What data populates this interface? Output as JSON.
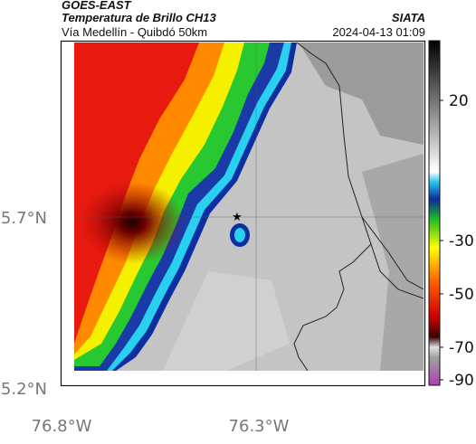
{
  "header": {
    "satellite": "GOES-EAST",
    "product": "Temperatura de Brillo CH13",
    "route": "Vía Medellín - Quibdó 50km",
    "agency": "SIATA",
    "datetime": "2024-04-13 01:09"
  },
  "axes": {
    "lat_ticks": [
      "5.7°N",
      "5.2°N"
    ],
    "lon_ticks": [
      "76.8°W",
      "76.3°W"
    ]
  },
  "colorbar": {
    "ticks": [
      "20",
      "-30",
      "-50",
      "-70",
      "-90"
    ]
  },
  "marker": {
    "symbol": "★"
  },
  "colors": {
    "cold_core": "#6b0000",
    "red": "#e81a10",
    "orange": "#ff8a00",
    "yellow": "#f4f000",
    "green": "#28c830",
    "blue": "#0b2fa0",
    "cyan": "#2ad0f0",
    "warm_gray": "#bdbdbd"
  }
}
